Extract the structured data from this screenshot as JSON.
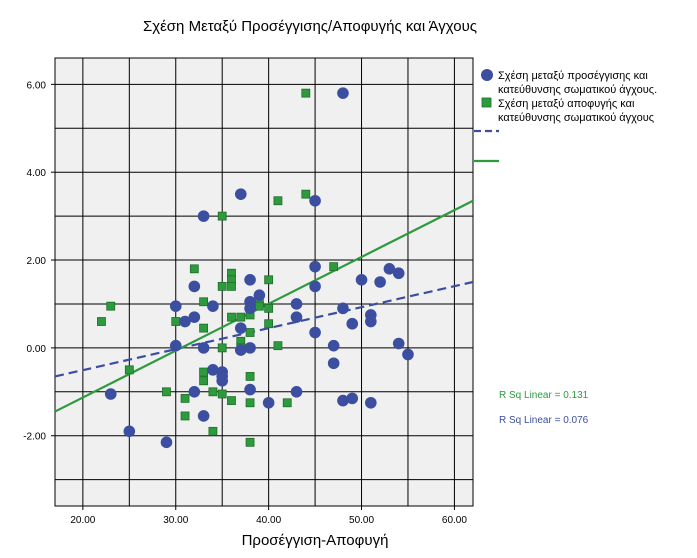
{
  "chart_data": {
    "type": "scatter",
    "title": "Σχέση Μεταξύ Προσέγγισης/Αποφυγής και Άγχους",
    "xlabel": "Προσέγγιση-Αποφυγή",
    "ylabel": "",
    "xlim": [
      17,
      62
    ],
    "ylim": [
      -3.6,
      6.6
    ],
    "x_ticks": [
      "20.00",
      "30.00",
      "40.00",
      "50.00",
      "60.00"
    ],
    "y_ticks": [
      "6.00",
      "4.00",
      "2.00",
      "0.00",
      "-2.00"
    ],
    "grid": true,
    "legend_position": "right",
    "series": [
      {
        "name": "Σχέση μεταξύ προσέγγισης και κατεύθυνσης σωματικού άγχους.",
        "label_lines": [
          "Σχέση μεταξύ προσέγγισης και",
          "κατεύθυνσης σωματικού άγχους."
        ],
        "marker": "circle",
        "color": "#3b4ea0",
        "fit_line": {
          "x": [
            17,
            62
          ],
          "y": [
            -0.65,
            1.5
          ],
          "style": "dashed",
          "r2_label": "R Sq Linear = 0.076"
        },
        "points": [
          [
            23,
            -1.05
          ],
          [
            25,
            -1.9
          ],
          [
            29,
            -2.15
          ],
          [
            30,
            0.95
          ],
          [
            30,
            0.05
          ],
          [
            31,
            0.6
          ],
          [
            32,
            1.4
          ],
          [
            32,
            0.7
          ],
          [
            32,
            -1.0
          ],
          [
            33,
            3.0
          ],
          [
            33,
            -1.55
          ],
          [
            33,
            0.0
          ],
          [
            34,
            0.95
          ],
          [
            34,
            -0.5
          ],
          [
            35,
            -0.55
          ],
          [
            35,
            -0.65
          ],
          [
            35,
            -0.75
          ],
          [
            37,
            3.5
          ],
          [
            37,
            0.45
          ],
          [
            37,
            -0.05
          ],
          [
            38,
            1.55
          ],
          [
            38,
            1.05
          ],
          [
            38,
            0.9
          ],
          [
            38,
            0.0
          ],
          [
            38,
            -0.95
          ],
          [
            39,
            1.2
          ],
          [
            40,
            -1.25
          ],
          [
            43,
            1.0
          ],
          [
            43,
            0.7
          ],
          [
            43,
            -1.0
          ],
          [
            45,
            3.35
          ],
          [
            45,
            1.85
          ],
          [
            45,
            1.4
          ],
          [
            45,
            0.35
          ],
          [
            47,
            0.05
          ],
          [
            47,
            -0.35
          ],
          [
            48,
            5.8
          ],
          [
            48,
            0.9
          ],
          [
            48,
            -1.2
          ],
          [
            49,
            0.55
          ],
          [
            49,
            -1.15
          ],
          [
            50,
            1.55
          ],
          [
            51,
            0.75
          ],
          [
            51,
            0.6
          ],
          [
            51,
            -1.25
          ],
          [
            52,
            1.5
          ],
          [
            53,
            1.8
          ],
          [
            54,
            1.7
          ],
          [
            54,
            0.1
          ],
          [
            55,
            -0.15
          ]
        ]
      },
      {
        "name": "Σχέση μεταξύ αποφυγής και κατεύθυνσης σωματικού άγχους",
        "label_lines": [
          "Σχέση μεταξύ αποφυγής και",
          "κατεύθυνσης σωματικού άγχους"
        ],
        "marker": "square",
        "color": "#2e9a3e",
        "fit_line": {
          "x": [
            17,
            62
          ],
          "y": [
            -1.45,
            3.35
          ],
          "style": "solid",
          "r2_label": "R Sq Linear = 0.131"
        },
        "points": [
          [
            22,
            0.6
          ],
          [
            23,
            0.95
          ],
          [
            25,
            -0.5
          ],
          [
            29,
            -1.0
          ],
          [
            30,
            0.6
          ],
          [
            31,
            -1.15
          ],
          [
            31,
            -1.55
          ],
          [
            32,
            1.8
          ],
          [
            33,
            1.05
          ],
          [
            33,
            0.45
          ],
          [
            33,
            -0.55
          ],
          [
            33,
            -0.75
          ],
          [
            34,
            -1.0
          ],
          [
            34,
            -1.9
          ],
          [
            35,
            3.0
          ],
          [
            35,
            1.4
          ],
          [
            35,
            0.0
          ],
          [
            35,
            -1.05
          ],
          [
            36,
            1.7
          ],
          [
            36,
            1.55
          ],
          [
            36,
            1.4
          ],
          [
            36,
            0.7
          ],
          [
            36,
            -1.2
          ],
          [
            37,
            0.7
          ],
          [
            37,
            0.15
          ],
          [
            37,
            0.0
          ],
          [
            38,
            0.75
          ],
          [
            38,
            0.35
          ],
          [
            38,
            -0.65
          ],
          [
            38,
            -1.25
          ],
          [
            38,
            -2.15
          ],
          [
            39,
            1.05
          ],
          [
            39,
            0.95
          ],
          [
            40,
            1.55
          ],
          [
            40,
            0.9
          ],
          [
            40,
            0.55
          ],
          [
            41,
            3.35
          ],
          [
            41,
            0.05
          ],
          [
            42,
            -1.25
          ],
          [
            44,
            5.8
          ],
          [
            44,
            3.5
          ],
          [
            47,
            1.85
          ]
        ]
      }
    ]
  }
}
